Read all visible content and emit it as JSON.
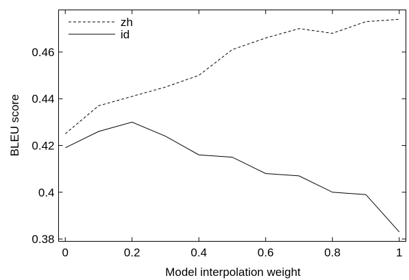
{
  "chart_data": {
    "type": "line",
    "title": "",
    "xlabel": "Model interpolation weight",
    "ylabel": "BLEU score",
    "xlim": [
      -0.02,
      1.02
    ],
    "ylim": [
      0.379,
      0.478
    ],
    "xticks": [
      0,
      0.2,
      0.4,
      0.6,
      0.8,
      1
    ],
    "xtick_labels": [
      "0",
      "0.2",
      "0.4",
      "0.6",
      "0.8",
      "1"
    ],
    "yticks": [
      0.38,
      0.4,
      0.42,
      0.44,
      0.46
    ],
    "ytick_labels": [
      "0.38",
      "0.4",
      "0.42",
      "0.44",
      "0.46"
    ],
    "grid": false,
    "legend_position": "top-left",
    "x": [
      0,
      0.1,
      0.2,
      0.3,
      0.4,
      0.5,
      0.6,
      0.7,
      0.8,
      0.9,
      1.0
    ],
    "series": [
      {
        "name": "zh",
        "style": "dashed",
        "color": "#000000",
        "values": [
          0.425,
          0.437,
          0.441,
          0.445,
          0.45,
          0.461,
          0.466,
          0.47,
          0.468,
          0.473,
          0.474
        ]
      },
      {
        "name": "id",
        "style": "solid",
        "color": "#000000",
        "values": [
          0.419,
          0.426,
          0.43,
          0.424,
          0.416,
          0.415,
          0.408,
          0.407,
          0.4,
          0.399,
          0.383
        ]
      }
    ]
  }
}
